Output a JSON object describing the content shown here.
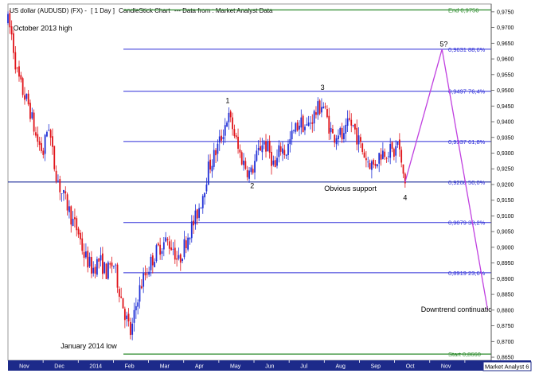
{
  "header": {
    "title": "US dollar (AUDUSD) (FX) -",
    "period": "[ 1 Day ]",
    "chart_kind": "CandleStick Chart",
    "source": "--- Data from : Market Analyst Data"
  },
  "footer": {
    "brand": "Market Analyst 6"
  },
  "colors": {
    "up_candle": "#1f2fd6",
    "down_candle": "#e0141a",
    "fib_line": "#2b2bd8",
    "fib_label": "#2b2bd8",
    "support_line": "#1a2a9a",
    "projection": "#c040e0",
    "boundary_line": "#2a8a2a",
    "axis_bg": "#1d2a8a"
  },
  "chart_data": {
    "type": "candlestick",
    "title": "US dollar (AUDUSD) (FX) - [ 1 Day ] CandleStick Chart --- Data from : Market Analyst Data",
    "x_axis": {
      "ticks": [
        {
          "label": "Nov",
          "month_index": 1
        },
        {
          "label": "Dec",
          "month_index": 2
        },
        {
          "label": "2014",
          "month_index": 3
        },
        {
          "label": "Feb",
          "month_index": 4
        },
        {
          "label": "Mar",
          "month_index": 5
        },
        {
          "label": "Apr",
          "month_index": 6
        },
        {
          "label": "May",
          "month_index": 7
        },
        {
          "label": "Jun",
          "month_index": 8
        },
        {
          "label": "Jul",
          "month_index": 9
        },
        {
          "label": "Aug",
          "month_index": 10
        },
        {
          "label": "Sep",
          "month_index": 11
        },
        {
          "label": "Oct",
          "month_index": 12
        },
        {
          "label": "Nov",
          "month_index": 13
        }
      ],
      "range": [
        0,
        13.75
      ]
    },
    "y_axis": {
      "range": [
        0.864,
        0.9775
      ],
      "tick_start": 0.865,
      "tick_end": 0.975,
      "tick_step": 0.005
    },
    "price_path": [
      [
        0.0,
        0.972
      ],
      [
        0.1,
        0.968
      ],
      [
        0.25,
        0.956
      ],
      [
        0.4,
        0.95
      ],
      [
        0.6,
        0.945
      ],
      [
        0.8,
        0.935
      ],
      [
        1.0,
        0.93
      ],
      [
        1.15,
        0.94
      ],
      [
        1.3,
        0.927
      ],
      [
        1.5,
        0.918
      ],
      [
        1.7,
        0.913
      ],
      [
        1.85,
        0.908
      ],
      [
        2.0,
        0.905
      ],
      [
        2.15,
        0.898
      ],
      [
        2.4,
        0.893
      ],
      [
        2.6,
        0.896
      ],
      [
        2.8,
        0.892
      ],
      [
        3.0,
        0.895
      ],
      [
        3.2,
        0.885
      ],
      [
        3.35,
        0.878
      ],
      [
        3.5,
        0.872
      ],
      [
        3.7,
        0.885
      ],
      [
        3.85,
        0.89
      ],
      [
        4.1,
        0.896
      ],
      [
        4.3,
        0.9
      ],
      [
        4.5,
        0.902
      ],
      [
        4.7,
        0.9
      ],
      [
        4.85,
        0.895
      ],
      [
        5.0,
        0.9
      ],
      [
        5.15,
        0.905
      ],
      [
        5.3,
        0.908
      ],
      [
        5.5,
        0.915
      ],
      [
        5.7,
        0.925
      ],
      [
        5.9,
        0.93
      ],
      [
        6.1,
        0.936
      ],
      [
        6.25,
        0.942
      ],
      [
        6.4,
        0.938
      ],
      [
        6.55,
        0.931
      ],
      [
        6.7,
        0.927
      ],
      [
        6.9,
        0.923
      ],
      [
        7.05,
        0.928
      ],
      [
        7.25,
        0.934
      ],
      [
        7.45,
        0.93
      ],
      [
        7.6,
        0.925
      ],
      [
        7.75,
        0.932
      ],
      [
        7.9,
        0.93
      ],
      [
        8.1,
        0.936
      ],
      [
        8.3,
        0.94
      ],
      [
        8.5,
        0.938
      ],
      [
        8.7,
        0.942
      ],
      [
        8.95,
        0.946
      ],
      [
        9.1,
        0.94
      ],
      [
        9.25,
        0.935
      ],
      [
        9.4,
        0.937
      ],
      [
        9.55,
        0.934
      ],
      [
        9.7,
        0.94
      ],
      [
        9.85,
        0.938
      ],
      [
        10.0,
        0.933
      ],
      [
        10.2,
        0.928
      ],
      [
        10.4,
        0.926
      ],
      [
        10.6,
        0.93
      ],
      [
        10.8,
        0.931
      ],
      [
        11.0,
        0.93
      ],
      [
        11.1,
        0.934
      ],
      [
        11.2,
        0.925
      ],
      [
        11.3,
        0.921
      ]
    ],
    "fib_levels": [
      {
        "label": "End 0,9756",
        "value": 0.9756,
        "kind": "end"
      },
      {
        "label": "0,9631 88,6%",
        "value": 0.9631,
        "kind": "fib"
      },
      {
        "label": "0,9497 76,4%",
        "value": 0.9497,
        "kind": "fib"
      },
      {
        "label": "0,9337 61,8%",
        "value": 0.9337,
        "kind": "fib"
      },
      {
        "label": "0,9208 50,0%",
        "value": 0.9208,
        "kind": "support"
      },
      {
        "label": "0,9079 38,2%",
        "value": 0.9079,
        "kind": "fib"
      },
      {
        "label": "0,8919 23,6%",
        "value": 0.8919,
        "kind": "fib"
      },
      {
        "label": "Start 0,8660",
        "value": 0.866,
        "kind": "start"
      }
    ],
    "wave_labels": [
      {
        "label": "1",
        "x": 6.25,
        "y": 0.946
      },
      {
        "label": "2",
        "x": 6.95,
        "y": 0.9188
      },
      {
        "label": "3",
        "x": 8.95,
        "y": 0.9502
      },
      {
        "label": "4",
        "x": 11.3,
        "y": 0.9151
      },
      {
        "label": "5?",
        "x": 12.4,
        "y": 0.9639
      }
    ],
    "projection": [
      [
        11.3,
        0.9208
      ],
      [
        12.35,
        0.9631
      ],
      [
        13.65,
        0.88
      ]
    ],
    "annotations": [
      {
        "text": "October 2013 high",
        "x": 0.15,
        "y": 0.969
      },
      {
        "text": "Obvious support",
        "x": 9.0,
        "y": 0.918
      },
      {
        "text": "Downtrend continuation",
        "x": 11.75,
        "y": 0.8795
      },
      {
        "text": "January 2014 low",
        "x": 1.5,
        "y": 0.8678
      }
    ],
    "grid": false
  }
}
